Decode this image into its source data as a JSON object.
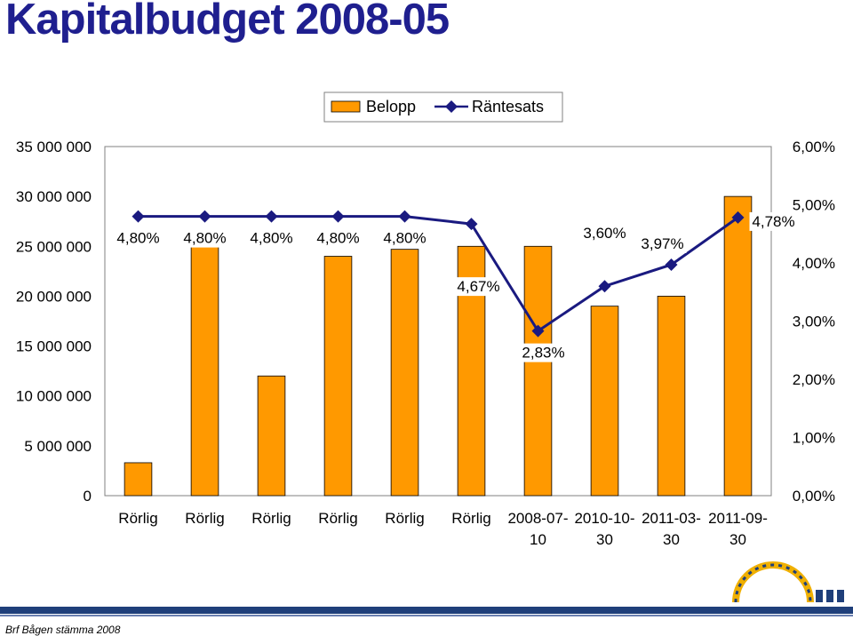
{
  "slide": {
    "title": "Kapitalbudget 2008-05",
    "footer": "Brf Bågen stämma 2008"
  },
  "colors": {
    "bar": "#ff9900",
    "line": "#1a1a80",
    "title": "#1f1f8f"
  },
  "chart_data": {
    "type": "bar",
    "categories": [
      "Rörlig",
      "Rörlig",
      "Rörlig",
      "Rörlig",
      "Rörlig",
      "Rörlig",
      "2008-07-10",
      "2010-10-30",
      "2011-03-30",
      "2011-09-30"
    ],
    "category_lines": [
      [
        "Rörlig"
      ],
      [
        "Rörlig"
      ],
      [
        "Rörlig"
      ],
      [
        "Rörlig"
      ],
      [
        "Rörlig"
      ],
      [
        "Rörlig"
      ],
      [
        "2008-07-",
        "10"
      ],
      [
        "2010-10-",
        "30"
      ],
      [
        "2011-03-",
        "30"
      ],
      [
        "2011-09-",
        "30"
      ]
    ],
    "series": [
      {
        "name": "Belopp",
        "type": "bar",
        "axis": "left",
        "values": [
          3300000,
          25000000,
          12000000,
          24000000,
          24700000,
          25000000,
          25000000,
          19000000,
          20000000,
          30000000
        ]
      },
      {
        "name": "Räntesats",
        "type": "line",
        "axis": "right",
        "values": [
          4.8,
          4.8,
          4.8,
          4.8,
          4.8,
          4.67,
          2.83,
          3.6,
          3.97,
          4.78
        ],
        "labels": [
          "4,80%",
          "4,80%",
          "4,80%",
          "4,80%",
          "4,80%",
          "4,67%",
          "2,83%",
          "3,60%",
          "3,97%",
          "4,78%"
        ]
      }
    ],
    "left_axis": {
      "ylim": [
        0,
        35000000
      ],
      "ticks": [
        0,
        5000000,
        10000000,
        15000000,
        20000000,
        25000000,
        30000000,
        35000000
      ],
      "tick_labels": [
        "0",
        "5 000 000",
        "10 000 000",
        "15 000 000",
        "20 000 000",
        "25 000 000",
        "30 000 000",
        "35 000 000"
      ]
    },
    "right_axis": {
      "ylim": [
        0,
        6
      ],
      "ticks": [
        0,
        1,
        2,
        3,
        4,
        5,
        6
      ],
      "tick_labels": [
        "0,00%",
        "1,00%",
        "2,00%",
        "3,00%",
        "4,00%",
        "5,00%",
        "6,00%"
      ]
    },
    "legend": {
      "position": "top",
      "entries": [
        "Belopp",
        "Räntesats"
      ]
    },
    "grid": false
  }
}
